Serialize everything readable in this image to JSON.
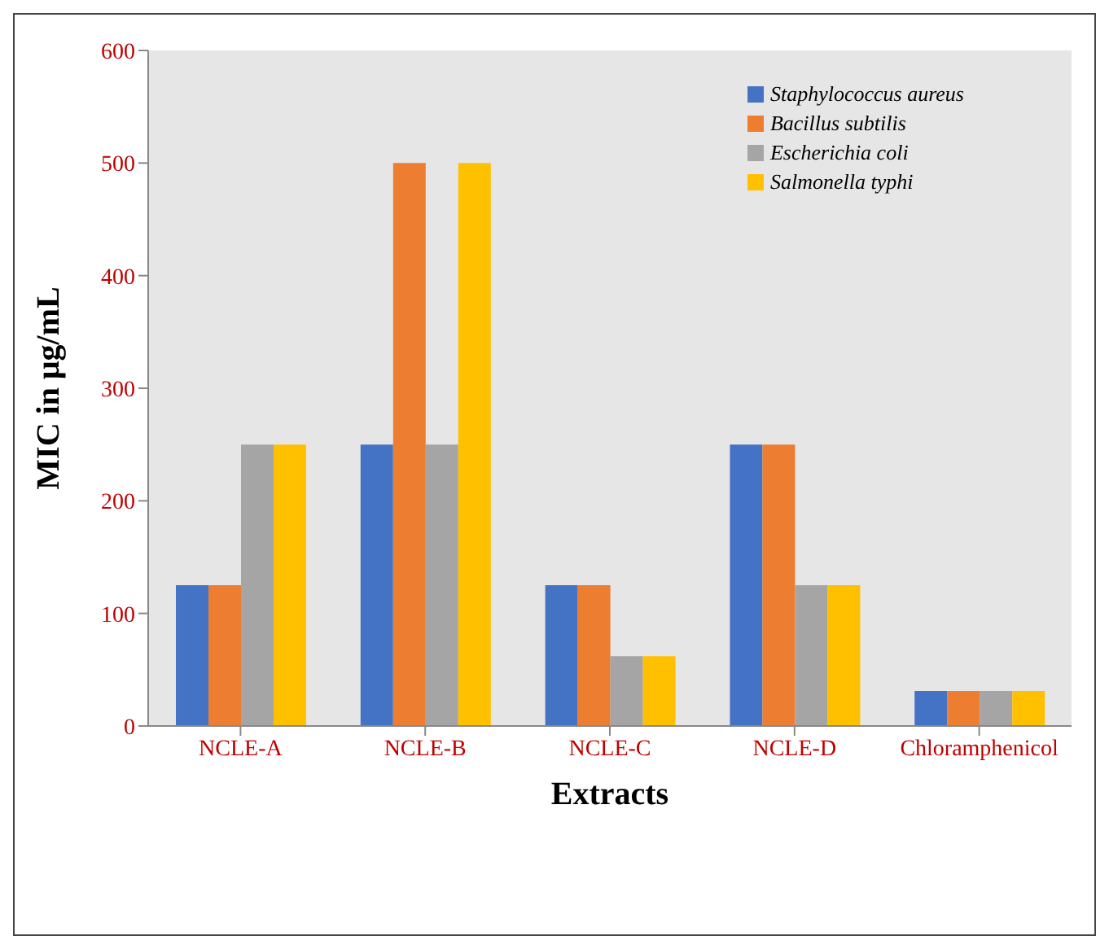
{
  "chart_data": {
    "type": "bar",
    "xlabel": "Extracts",
    "ylabel": "MIC in μg/mL",
    "categories": [
      "NCLE-A",
      "NCLE-B",
      "NCLE-C",
      "NCLE-D",
      "Chloramphenicol"
    ],
    "series": [
      {
        "name": "Staphylococcus aureus",
        "color": "#4472c4",
        "values": [
          125,
          250,
          125,
          250,
          31
        ]
      },
      {
        "name": "Bacillus subtilis",
        "color": "#ed7d31",
        "values": [
          125,
          500,
          125,
          250,
          31
        ]
      },
      {
        "name": "Escherichia coli",
        "color": "#a5a5a5",
        "values": [
          250,
          250,
          62,
          125,
          31
        ]
      },
      {
        "name": "Salmonella typhi",
        "color": "#ffc000",
        "values": [
          250,
          500,
          62,
          125,
          31
        ]
      }
    ],
    "ylim": [
      0,
      600
    ],
    "yticks": [
      0,
      100,
      200,
      300,
      400,
      500,
      600
    ],
    "grid": false,
    "legend": "top right"
  }
}
